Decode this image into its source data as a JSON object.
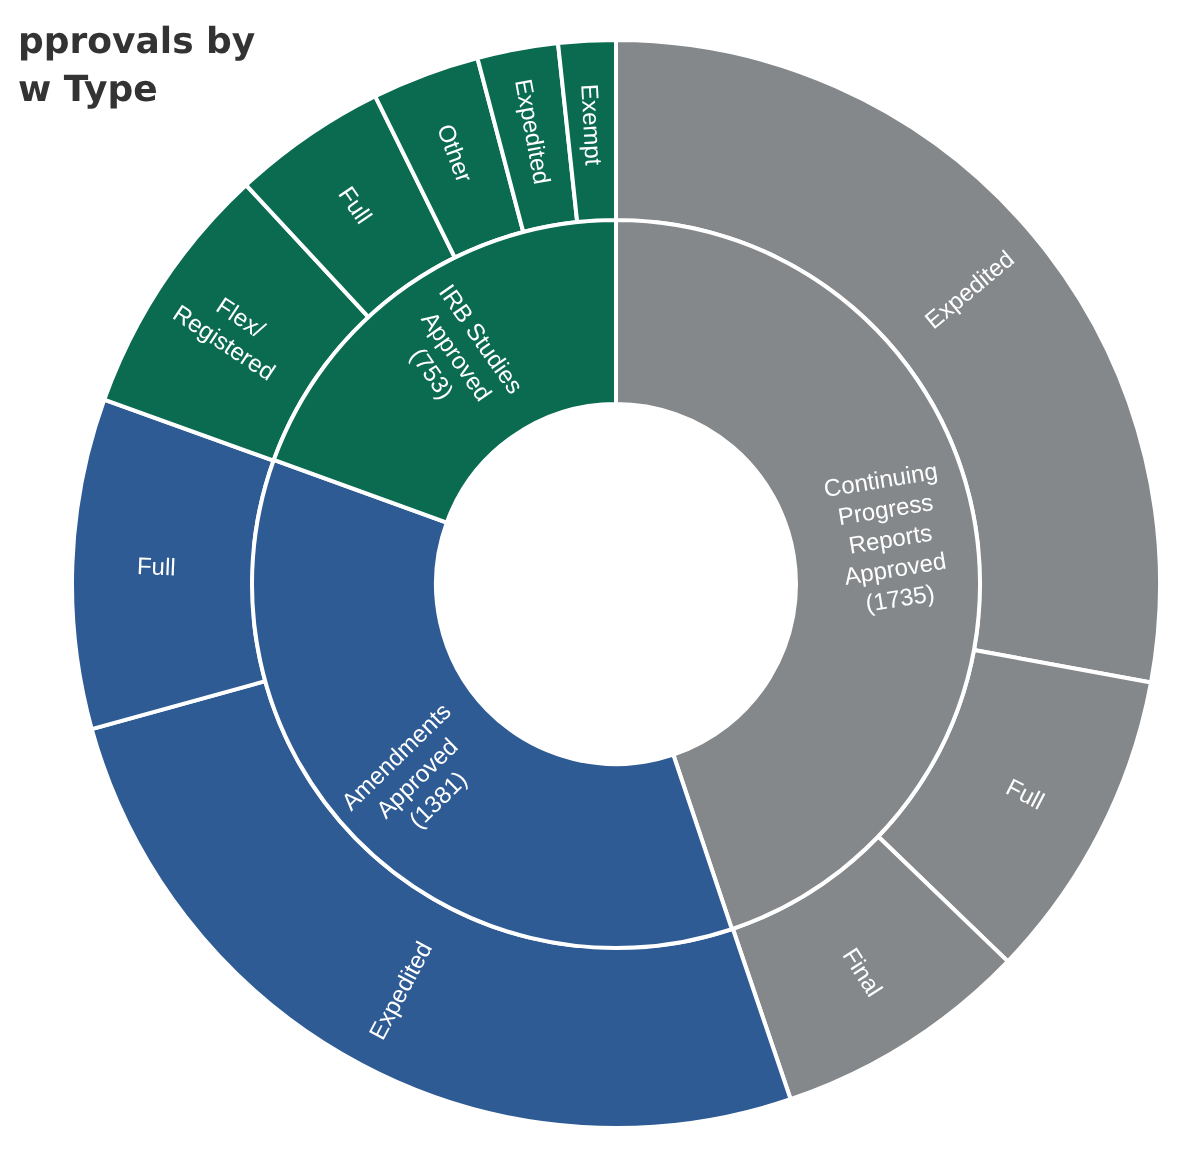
{
  "chart_data": [
    {
      "type": "donut",
      "categories": [
        "Continuing\nProgress\nReports\nApproved",
        "Amendments\nApproved",
        "IRB Studies\nApproved"
      ],
      "values": [
        1735,
        1381,
        753
      ],
      "colors": [
        "#85888a",
        "#2e5b94",
        "#0b6b50"
      ],
      "value_labels": [
        "(1735)",
        "(1381)",
        "(753)"
      ]
    },
    {
      "type": "donut",
      "title": "pprovals by\nw Type",
      "categories": [
        "Expedited",
        "Full",
        "Final",
        "Expedited",
        "Full",
        "Flex/\nRegistered",
        "Full",
        "Other",
        "Expedited",
        "Exempt"
      ],
      "values": [
        27.9,
        9.3,
        7.6,
        25.9,
        9.8,
        7.6,
        4.6,
        3.2,
        2.4,
        1.7
      ],
      "colors": [
        "#85888a",
        "#85888a",
        "#85888a",
        "#2e5b94",
        "#2e5b94",
        "#0b6b50",
        "#0b6b50",
        "#0b6b50",
        "#0b6b50",
        "#0b6b50"
      ]
    }
  ]
}
